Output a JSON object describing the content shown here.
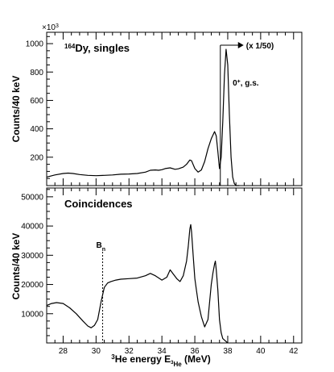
{
  "chart_data": [
    {
      "type": "line",
      "panel": "top",
      "title": "Dy, singles",
      "title_superscript": "164",
      "ylabel": "Counts/40 keV",
      "y_multiplier": "×10",
      "y_multiplier_exponent": "3",
      "xlim": [
        27,
        42.5
      ],
      "ylim": [
        0,
        1080
      ],
      "yticks": [
        200,
        400,
        600,
        800,
        1000
      ],
      "x": [
        27.0,
        27.5,
        28.0,
        28.3,
        28.6,
        29.0,
        29.5,
        30.0,
        30.5,
        31.0,
        31.5,
        32.0,
        32.5,
        33.0,
        33.3,
        33.6,
        33.8,
        34.0,
        34.2,
        34.5,
        34.8,
        35.0,
        35.3,
        35.5,
        35.7,
        35.8,
        36.0,
        36.2,
        36.4,
        36.6,
        36.8,
        37.0,
        37.2,
        37.3,
        37.4,
        37.5,
        37.6,
        37.7,
        37.8,
        37.9,
        38.0,
        38.1,
        38.2,
        38.3,
        38.4,
        38.5,
        38.7
      ],
      "y": [
        60,
        75,
        85,
        88,
        85,
        78,
        72,
        70,
        72,
        75,
        80,
        82,
        85,
        95,
        108,
        110,
        108,
        112,
        120,
        125,
        115,
        118,
        130,
        150,
        180,
        175,
        120,
        95,
        110,
        170,
        260,
        330,
        380,
        350,
        240,
        120,
        200,
        450,
        780,
        960,
        850,
        500,
        200,
        60,
        15,
        0,
        0
      ],
      "annotations": [
        "(x 1/50)",
        "0",
        "+",
        ", g.s."
      ]
    },
    {
      "type": "line",
      "panel": "bottom",
      "title": "Coincidences",
      "ylabel": "Counts/40 keV",
      "xlabel_prefix": "He energy E",
      "xlabel_superscript": "3",
      "xlabel_subscript": "He",
      "xlabel_sub_superscript": "3",
      "xlabel_unit": " (MeV)",
      "xlim": [
        27,
        42.5
      ],
      "ylim": [
        0,
        53000
      ],
      "xticks": [
        28,
        30,
        32,
        34,
        36,
        38,
        40,
        42
      ],
      "yticks": [
        10000,
        20000,
        30000,
        40000,
        50000
      ],
      "x": [
        27.0,
        27.3,
        27.6,
        28.0,
        28.4,
        28.8,
        29.2,
        29.5,
        29.7,
        29.9,
        30.1,
        30.3,
        30.5,
        30.7,
        30.9,
        31.2,
        31.5,
        32.0,
        32.5,
        33.0,
        33.3,
        33.6,
        34.0,
        34.3,
        34.5,
        34.7,
        34.9,
        35.1,
        35.3,
        35.5,
        35.6,
        35.7,
        35.75,
        35.8,
        35.9,
        36.0,
        36.1,
        36.2,
        36.4,
        36.6,
        36.8,
        37.0,
        37.1,
        37.2,
        37.25,
        37.3,
        37.4,
        37.5,
        37.6,
        37.7,
        37.8,
        37.9,
        38.0
      ],
      "y": [
        12800,
        13500,
        13800,
        13500,
        12000,
        10000,
        7500,
        5800,
        5200,
        6000,
        8000,
        14000,
        19000,
        20500,
        21000,
        21500,
        21800,
        22000,
        22200,
        23000,
        23800,
        23000,
        21500,
        22500,
        25000,
        23500,
        22000,
        21000,
        23000,
        28000,
        33000,
        39000,
        40500,
        38000,
        30000,
        22000,
        18000,
        14000,
        9000,
        5500,
        8000,
        20000,
        24000,
        27000,
        28000,
        25000,
        18000,
        8000,
        3500,
        1500,
        1000,
        500,
        0
      ],
      "annotations": [
        "B",
        "n"
      ],
      "threshold_x": 30.4
    }
  ]
}
